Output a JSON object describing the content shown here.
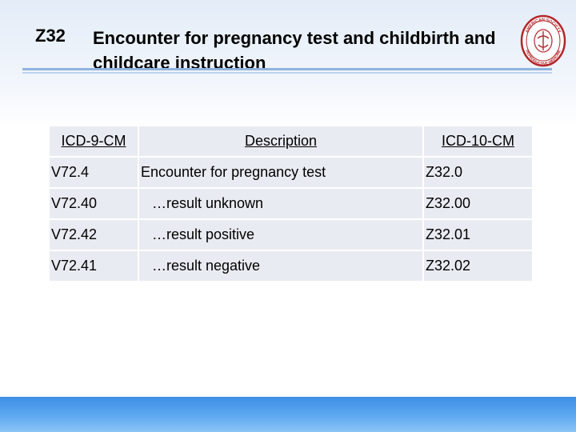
{
  "title": {
    "code": "Z32",
    "text": "Encounter for pregnancy test and childbirth and childcare instruction"
  },
  "logo": {
    "name": "asrm-seal-logo",
    "text_top": "AMERICAN SOCIETY",
    "text_bottom": "REPRODUCTIVE MEDICINE",
    "color": "#b3262a"
  },
  "table": {
    "headers": [
      "ICD-9-CM",
      "Description",
      "ICD-10-CM"
    ],
    "rows": [
      {
        "icd9": "V72.4",
        "description": "Encounter for pregnancy test",
        "icd10": "Z32.0"
      },
      {
        "icd9": "V72.40",
        "description": "…result unknown",
        "icd10": "Z32.00"
      },
      {
        "icd9": "V72.42",
        "description": "…result positive",
        "icd10": "Z32.01"
      },
      {
        "icd9": "V72.41",
        "description": "…result negative",
        "icd10": "Z32.02"
      }
    ]
  },
  "colors": {
    "accent_blue": "#3d8fe6",
    "cell_bg": "#e9ebf2"
  }
}
